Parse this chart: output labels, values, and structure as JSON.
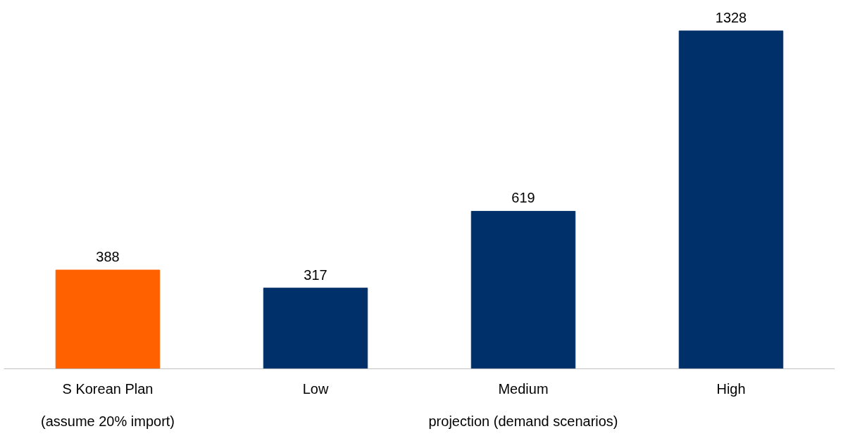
{
  "chart_data": {
    "type": "bar",
    "categories": [
      "S Korean Plan",
      "Low",
      "Medium",
      "High"
    ],
    "values": [
      388,
      317,
      619,
      1328
    ],
    "colors": [
      "#ff6000",
      "#003069",
      "#003069",
      "#003069"
    ],
    "data_labels": true,
    "grid": false,
    "annotations": [
      "(assume 20% import)",
      "projection (demand scenarios)"
    ]
  }
}
